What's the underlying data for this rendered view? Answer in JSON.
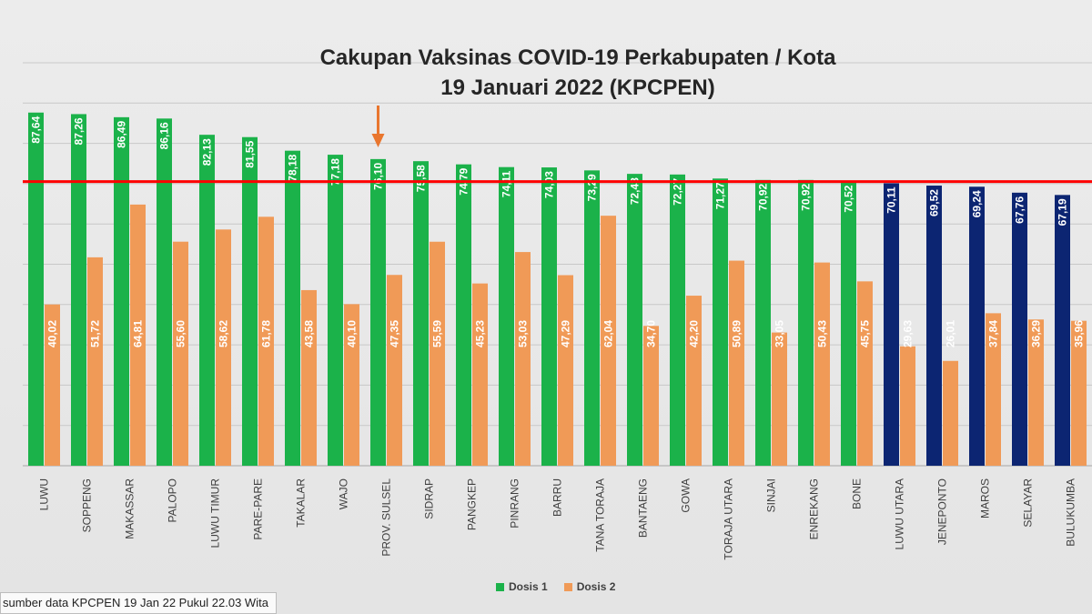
{
  "title": {
    "line1": "Cakupan Vaksinas COVID-19 Perkabupaten / Kota",
    "line2": "19 Januari 2022 (KPCPEN)"
  },
  "source_note": "sumber data KPCPEN 19 Jan 22 Pukul 22.03 Wita",
  "colors": {
    "dosis1": "#1bb24a",
    "dosis1_below_target": "#0c2572",
    "dosis2": "#f09a57",
    "target_line": "#ff0000",
    "arrow": "#e9762e",
    "gridline": "#c8c8c8",
    "bar_label_text": "#ffffff",
    "axis_label_text": "#404040"
  },
  "chart_data": {
    "type": "bar",
    "title": "Cakupan Vaksinas COVID-19 Perkabupaten / Kota 19 Januari 2022 (KPCPEN)",
    "xlabel": "",
    "ylabel": "",
    "ylim": [
      0,
      100
    ],
    "grid": true,
    "legend_position": "bottom",
    "target_line_value": 70.5,
    "highlighted_category": "PROV. SULSEL",
    "categories": [
      "LUWU",
      "SOPPENG",
      "MAKASSAR",
      "PALOPO",
      "LUWU TIMUR",
      "PARE-PARE",
      "TAKALAR",
      "WAJO",
      "PROV. SULSEL",
      "SIDRAP",
      "PANGKEP",
      "PINRANG",
      "BARRU",
      "TANA TORAJA",
      "BANTAENG",
      "GOWA",
      "TORAJA UTARA",
      "SINJAI",
      "ENREKANG",
      "BONE",
      "LUWU UTARA",
      "JENEPONTO",
      "MAROS",
      "SELAYAR",
      "BULUKUMBA"
    ],
    "series": [
      {
        "name": "Dosis 1",
        "values": [
          87.64,
          87.26,
          86.49,
          86.16,
          82.13,
          81.55,
          78.18,
          77.18,
          76.1,
          75.58,
          74.79,
          74.11,
          74.03,
          73.29,
          72.43,
          72.27,
          71.27,
          70.92,
          70.92,
          70.52,
          70.11,
          69.52,
          69.24,
          67.76,
          67.19
        ],
        "labels": [
          "87,64",
          "87,26",
          "86,49",
          "86,16",
          "82,13",
          "81,55",
          "78,18",
          "77,18",
          "76,10",
          "75,58",
          "74,79",
          "74,11",
          "74,03",
          "73,29",
          "72,43",
          "72,27",
          "71,27",
          "70,92",
          "70,92",
          "70,52",
          "70,11",
          "69,52",
          "69,24",
          "67,76",
          "67,19"
        ]
      },
      {
        "name": "Dosis 2",
        "values": [
          40.02,
          51.72,
          64.81,
          55.6,
          58.62,
          61.78,
          43.58,
          40.1,
          47.35,
          55.59,
          45.23,
          53.03,
          47.29,
          62.04,
          34.7,
          42.2,
          50.89,
          33.05,
          50.43,
          45.75,
          29.63,
          26.01,
          37.84,
          36.29,
          35.96
        ],
        "labels": [
          "40,02",
          "51,72",
          "64,81",
          "55,60",
          "58,62",
          "61,78",
          "43,58",
          "40,10",
          "47,35",
          "55,59",
          "45,23",
          "53,03",
          "47,29",
          "62,04",
          "34,70",
          "42,20",
          "50,89",
          "33,05",
          "50,43",
          "45,75",
          "29,63",
          "26,01",
          "37,84",
          "36,29",
          "35,96"
        ]
      }
    ]
  }
}
